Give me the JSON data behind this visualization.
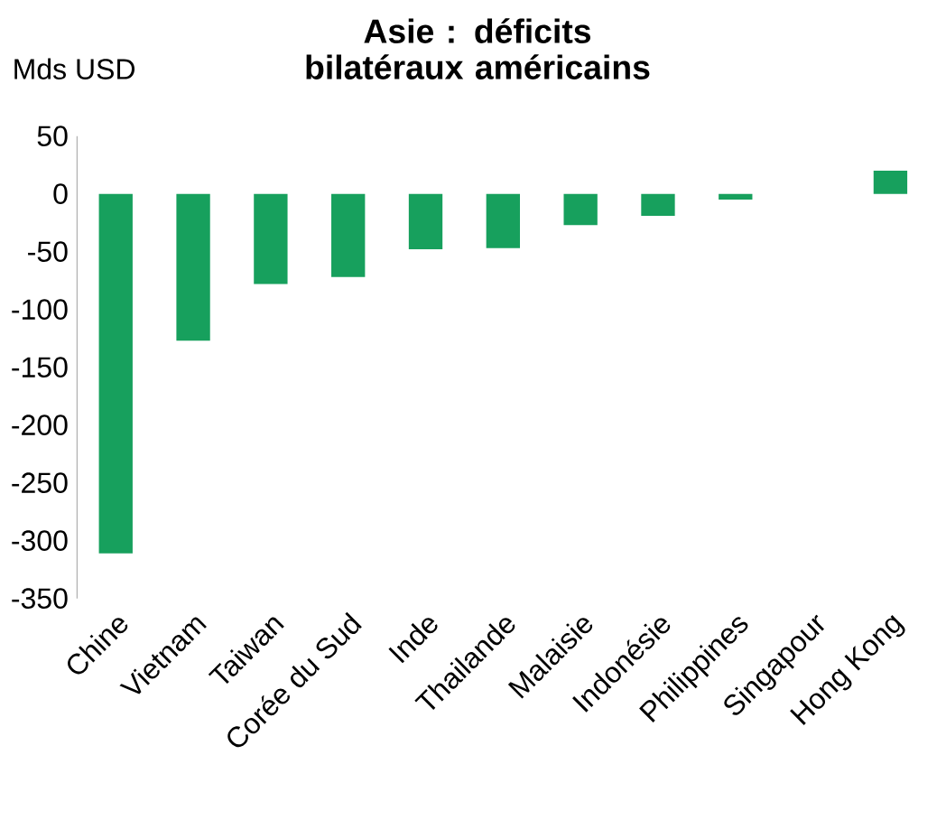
{
  "chart_data": {
    "type": "bar",
    "title": "Asie : déficits bilatéraux américains",
    "ylabel": "Mds USD",
    "categories": [
      "Chine",
      "Vietnam",
      "Taiwan",
      "Corée du Sud",
      "Inde",
      "Thailande",
      "Malaisie",
      "Indonésie",
      "Philippines",
      "Singapour",
      "Hong Kong"
    ],
    "values": [
      -311,
      -127,
      -78,
      -72,
      -48,
      -47,
      -27,
      -19,
      -5,
      0,
      20
    ],
    "color": "#17a05d",
    "ylim": [
      -350,
      50
    ],
    "yticks": [
      -350,
      -300,
      -250,
      -200,
      -150,
      -100,
      -50,
      0,
      50
    ],
    "grid": false
  }
}
